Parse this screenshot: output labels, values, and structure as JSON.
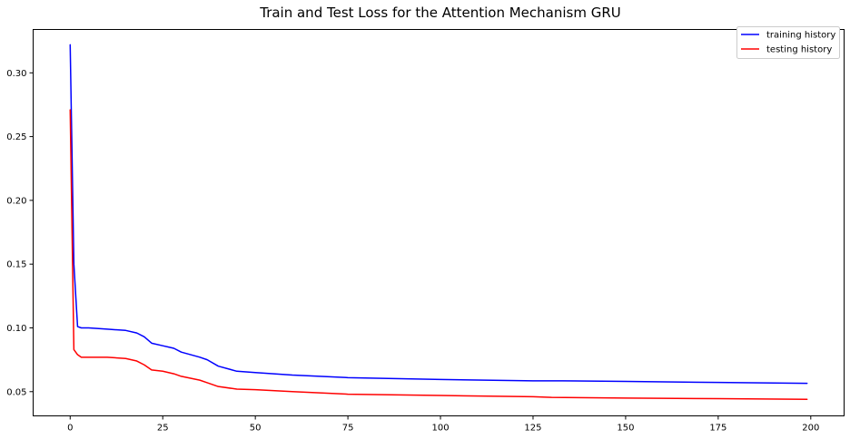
{
  "chart_data": {
    "type": "line",
    "title": "Train and Test Loss for the Attention Mechanism GRU",
    "xlabel": "",
    "ylabel": "",
    "xlim": [
      -10,
      209
    ],
    "ylim": [
      0.031,
      0.334
    ],
    "x_ticks": [
      0,
      25,
      50,
      75,
      100,
      125,
      150,
      175,
      200
    ],
    "y_ticks": [
      0.05,
      0.1,
      0.15,
      0.2,
      0.25,
      0.3
    ],
    "y_tick_labels": [
      "0.05",
      "0.10",
      "0.15",
      "0.20",
      "0.25",
      "0.30"
    ],
    "grid": false,
    "legend": {
      "placement": "top-right",
      "entries": [
        "training history",
        "testing history"
      ]
    },
    "series": [
      {
        "name": "training history",
        "color": "#0000ff",
        "points": [
          [
            0,
            0.322
          ],
          [
            1,
            0.15
          ],
          [
            2,
            0.101
          ],
          [
            3,
            0.1
          ],
          [
            5,
            0.1
          ],
          [
            10,
            0.099
          ],
          [
            15,
            0.098
          ],
          [
            18,
            0.096
          ],
          [
            20,
            0.093
          ],
          [
            22,
            0.088
          ],
          [
            25,
            0.086
          ],
          [
            28,
            0.084
          ],
          [
            30,
            0.081
          ],
          [
            35,
            0.077
          ],
          [
            37,
            0.075
          ],
          [
            40,
            0.07
          ],
          [
            45,
            0.066
          ],
          [
            50,
            0.065
          ],
          [
            60,
            0.063
          ],
          [
            75,
            0.061
          ],
          [
            100,
            0.0595
          ],
          [
            125,
            0.0585
          ],
          [
            133,
            0.0585
          ],
          [
            150,
            0.058
          ],
          [
            175,
            0.0572
          ],
          [
            199,
            0.0565
          ]
        ]
      },
      {
        "name": "testing history",
        "color": "#ff0000",
        "points": [
          [
            0,
            0.271
          ],
          [
            1,
            0.083
          ],
          [
            2,
            0.079
          ],
          [
            3,
            0.077
          ],
          [
            10,
            0.077
          ],
          [
            15,
            0.076
          ],
          [
            18,
            0.074
          ],
          [
            20,
            0.071
          ],
          [
            22,
            0.067
          ],
          [
            25,
            0.066
          ],
          [
            28,
            0.064
          ],
          [
            30,
            0.062
          ],
          [
            35,
            0.059
          ],
          [
            37,
            0.057
          ],
          [
            40,
            0.054
          ],
          [
            45,
            0.052
          ],
          [
            50,
            0.0515
          ],
          [
            60,
            0.05
          ],
          [
            75,
            0.048
          ],
          [
            100,
            0.047
          ],
          [
            125,
            0.046
          ],
          [
            130,
            0.0455
          ],
          [
            150,
            0.045
          ],
          [
            175,
            0.0445
          ],
          [
            199,
            0.044
          ]
        ]
      }
    ]
  }
}
